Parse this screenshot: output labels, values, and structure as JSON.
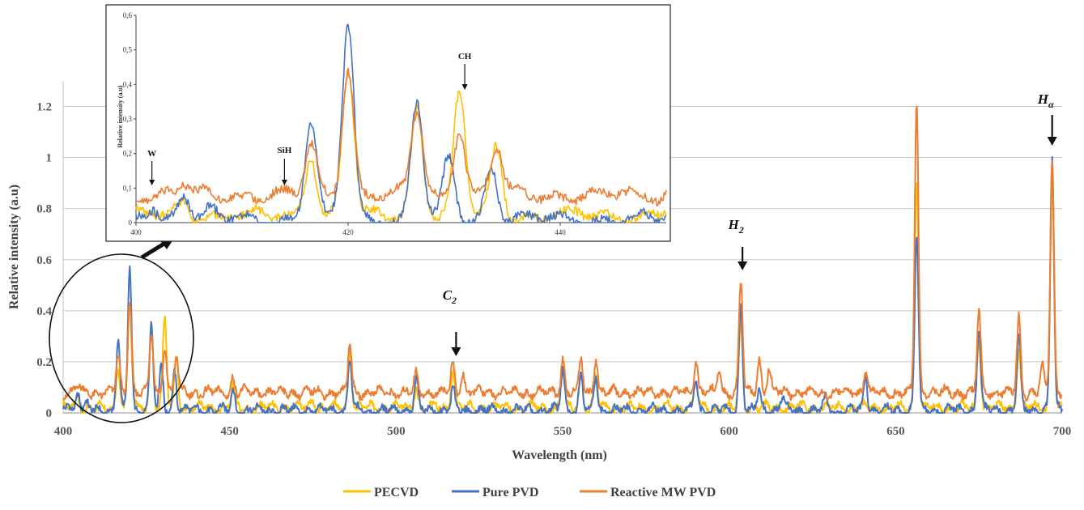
{
  "chart_data": [
    {
      "type": "line",
      "xlabel": "Wavelength (nm)",
      "ylabel": "Relative intensity (a.u)",
      "xlim": [
        400,
        700
      ],
      "ylim": [
        0,
        1.3
      ],
      "x_ticks": [
        "400",
        "450",
        "500",
        "550",
        "600",
        "650",
        "700"
      ],
      "y_ticks": [
        "0",
        "0.2",
        "0.4",
        "0.6",
        "0.8",
        "1",
        "1.2"
      ],
      "grid": "horizontal",
      "legend_position": "bottom",
      "legend": [
        "PECVD",
        "Pure PVD",
        "Reactive MW PVD"
      ],
      "colors": {
        "PECVD": "#FFC000",
        "Pure PVD": "#4472C4",
        "Reactive MW PVD": "#ED7D31"
      },
      "annotations": [
        {
          "base": "C",
          "sub": "2",
          "x": 518
        },
        {
          "base": "H",
          "sub": "2",
          "x": 604
        },
        {
          "base": "H",
          "sub": "α",
          "x": 697
        }
      ],
      "series": [
        {
          "name": "PECVD",
          "baseline": 0.02,
          "peaks": [
            [
              404.5,
              0.06
            ],
            [
              416.5,
              0.2
            ],
            [
              420,
              0.44
            ],
            [
              426.5,
              0.34
            ],
            [
              430.5,
              0.37
            ],
            [
              434,
              0.22
            ],
            [
              451,
              0.1
            ],
            [
              475,
              0.05
            ],
            [
              486.1,
              0.25
            ],
            [
              506,
              0.11
            ],
            [
              517,
              0.18
            ],
            [
              550,
              0.17
            ],
            [
              555.5,
              0.16
            ],
            [
              560,
              0.15
            ],
            [
              590,
              0.12
            ],
            [
              603.5,
              0.35
            ],
            [
              656.3,
              0.93
            ],
            [
              675,
              0.3
            ],
            [
              687,
              0.26
            ],
            [
              697,
              0.95
            ]
          ]
        },
        {
          "name": "Pure PVD",
          "baseline": 0.01,
          "peaks": [
            [
              401.5,
              0.05
            ],
            [
              404.5,
              0.09
            ],
            [
              407,
              0.03
            ],
            [
              416.5,
              0.29
            ],
            [
              420,
              0.58
            ],
            [
              426.5,
              0.35
            ],
            [
              429.5,
              0.18
            ],
            [
              433.5,
              0.17
            ],
            [
              451,
              0.09
            ],
            [
              486.1,
              0.21
            ],
            [
              506,
              0.14
            ],
            [
              517,
              0.09
            ],
            [
              550,
              0.17
            ],
            [
              555.5,
              0.16
            ],
            [
              560,
              0.14
            ],
            [
              590,
              0.14
            ],
            [
              603.5,
              0.43
            ],
            [
              609,
              0.09
            ],
            [
              616,
              0.07
            ],
            [
              629,
              0.06
            ],
            [
              641,
              0.15
            ],
            [
              656.3,
              0.7
            ],
            [
              675,
              0.34
            ],
            [
              687,
              0.3
            ],
            [
              697,
              1.0
            ]
          ]
        },
        {
          "name": "Reactive MW PVD",
          "baseline": 0.08,
          "peaks": [
            [
              404.5,
              0.11
            ],
            [
              416.5,
              0.22
            ],
            [
              420,
              0.45
            ],
            [
              426.5,
              0.32
            ],
            [
              430.5,
              0.27
            ],
            [
              434,
              0.22
            ],
            [
              451,
              0.14
            ],
            [
              486.1,
              0.27
            ],
            [
              506,
              0.15
            ],
            [
              517,
              0.19
            ],
            [
              520,
              0.16
            ],
            [
              550,
              0.21
            ],
            [
              555.5,
              0.21
            ],
            [
              560,
              0.22
            ],
            [
              590,
              0.21
            ],
            [
              597,
              0.17
            ],
            [
              603.5,
              0.52
            ],
            [
              609,
              0.21
            ],
            [
              612,
              0.18
            ],
            [
              641,
              0.17
            ],
            [
              656.3,
              1.22
            ],
            [
              675,
              0.4
            ],
            [
              687,
              0.38
            ],
            [
              694,
              0.19
            ],
            [
              697,
              1.0
            ]
          ]
        }
      ]
    },
    {
      "type": "line",
      "xlabel": "",
      "ylabel": "Relative intensity (a.u)",
      "xlim": [
        400,
        450
      ],
      "ylim": [
        0,
        0.6
      ],
      "x_ticks": [
        "400",
        "420",
        "440"
      ],
      "y_ticks": [
        "0",
        "0,1",
        "0,2",
        "0,3",
        "0,4",
        "0,5",
        "0,6"
      ],
      "annotations": [
        {
          "text": "W",
          "x": 401.5
        },
        {
          "text": "SiH",
          "x": 414
        },
        {
          "text": "CH",
          "x": 431
        }
      ]
    }
  ]
}
